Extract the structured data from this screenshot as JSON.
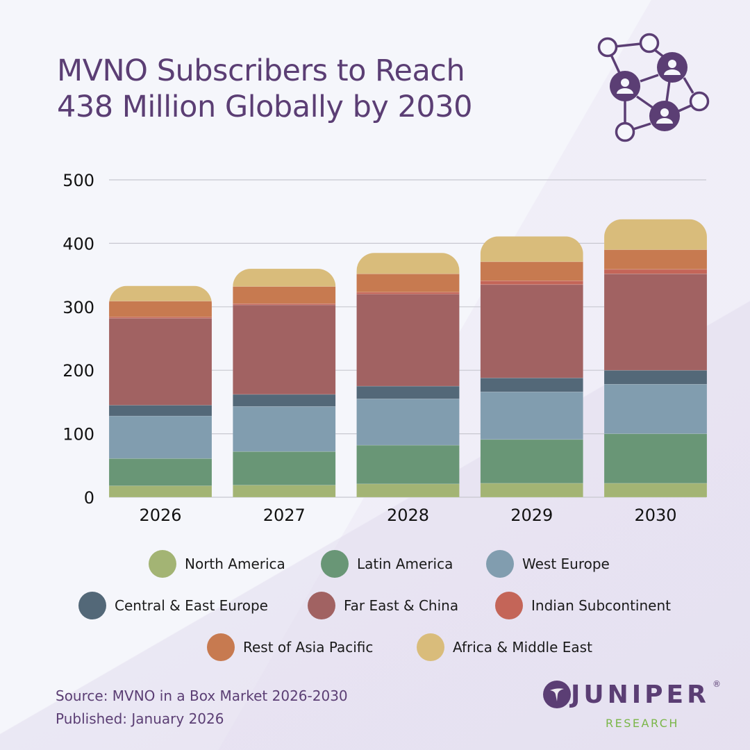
{
  "header": {
    "title_line1": "MVNO Subscribers to Reach",
    "title_line2": "438 Million Globally by 2030",
    "icon": "network-people-icon"
  },
  "colors": {
    "brand_purple": "#5b3e74",
    "brand_green": "#7ab648",
    "gridline": "#c8c8d0"
  },
  "chart_data": {
    "type": "bar",
    "stacked": true,
    "title": "MVNO Subscribers to Reach 438 Million Globally by 2030",
    "xlabel": "",
    "ylabel": "",
    "ylim": [
      0,
      500
    ],
    "yticks": [
      0,
      100,
      200,
      300,
      400,
      500
    ],
    "grid": true,
    "legend_position": "bottom",
    "categories": [
      "2026",
      "2027",
      "2028",
      "2029",
      "2030"
    ],
    "series": [
      {
        "name": "North America",
        "color": "#a3b474",
        "values": [
          18,
          19,
          21,
          22,
          22
        ]
      },
      {
        "name": "Latin America",
        "color": "#699676",
        "values": [
          43,
          53,
          61,
          69,
          78
        ]
      },
      {
        "name": "West Europe",
        "color": "#819daf",
        "values": [
          67,
          71,
          73,
          75,
          78
        ]
      },
      {
        "name": "Central & East Europe",
        "color": "#536878",
        "values": [
          17,
          19,
          20,
          22,
          22
        ]
      },
      {
        "name": "Far East & China",
        "color": "#a16262",
        "values": [
          137,
          141,
          145,
          147,
          152
        ]
      },
      {
        "name": "Indian Subcontinent",
        "color": "#c46558",
        "values": [
          2,
          2,
          3,
          6,
          7
        ]
      },
      {
        "name": "Rest of Asia Pacific",
        "color": "#c77a50",
        "values": [
          25,
          27,
          29,
          30,
          31
        ]
      },
      {
        "name": "Africa & Middle East",
        "color": "#d9bc7b",
        "values": [
          24,
          28,
          33,
          40,
          48
        ]
      }
    ],
    "totals": [
      333,
      360,
      385,
      411,
      438
    ]
  },
  "legend": {
    "rows": [
      [
        "North America",
        "Latin America",
        "West Europe"
      ],
      [
        "Central & East Europe",
        "Far East & China",
        "Indian Subcontinent"
      ],
      [
        "Rest of Asia Pacific",
        "Africa & Middle East"
      ]
    ]
  },
  "footer": {
    "source": "Source: MVNO in a Box Market 2026-2030",
    "published": "Published: January 2026"
  },
  "logo": {
    "word": "JUNIPER",
    "registered": "®",
    "sub": "RESEARCH"
  }
}
